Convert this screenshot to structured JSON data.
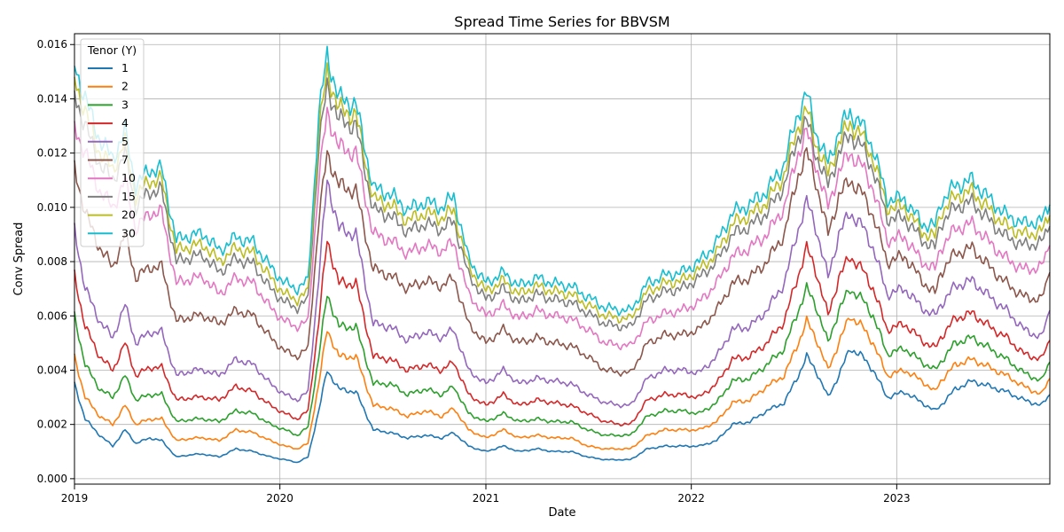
{
  "chart_data": {
    "type": "line",
    "title": "Spread Time Series for BBVSM",
    "xlabel": "Date",
    "ylabel": "Conv Spread",
    "x_range": [
      "2019-01-01",
      "2023-09-30"
    ],
    "x_ticks": [
      {
        "date": "2019-01-01",
        "label": "2019"
      },
      {
        "date": "2020-01-01",
        "label": "2020"
      },
      {
        "date": "2021-01-01",
        "label": "2021"
      },
      {
        "date": "2022-01-01",
        "label": "2022"
      },
      {
        "date": "2023-01-01",
        "label": "2023"
      }
    ],
    "ylim": [
      -0.0002,
      0.0164
    ],
    "y_ticks": [
      0.0,
      0.002,
      0.004,
      0.006,
      0.008,
      0.01,
      0.012,
      0.014,
      0.016
    ],
    "y_tick_labels": [
      "0.000",
      "0.002",
      "0.004",
      "0.006",
      "0.008",
      "0.010",
      "0.012",
      "0.014",
      "0.016"
    ],
    "grid": true,
    "legend": {
      "title": "Tenor (Y)",
      "placement": "top-left"
    },
    "x": [
      "2019-01-01",
      "2019-01-20",
      "2019-02-15",
      "2019-03-10",
      "2019-04-01",
      "2019-04-20",
      "2019-05-15",
      "2019-06-05",
      "2019-07-01",
      "2019-08-01",
      "2019-08-20",
      "2019-09-15",
      "2019-10-15",
      "2019-11-15",
      "2019-12-15",
      "2020-01-10",
      "2020-02-01",
      "2020-02-20",
      "2020-03-10",
      "2020-03-25",
      "2020-04-15",
      "2020-05-15",
      "2020-06-15",
      "2020-07-15",
      "2020-08-15",
      "2020-09-15",
      "2020-10-15",
      "2020-11-05",
      "2020-12-01",
      "2021-01-01",
      "2021-02-01",
      "2021-03-01",
      "2021-04-01",
      "2021-05-01",
      "2021-06-01",
      "2021-07-01",
      "2021-08-01",
      "2021-09-01",
      "2021-09-15",
      "2021-10-15",
      "2021-11-15",
      "2021-12-15",
      "2022-01-15",
      "2022-02-15",
      "2022-03-15",
      "2022-04-15",
      "2022-05-15",
      "2022-06-15",
      "2022-07-10",
      "2022-07-25",
      "2022-08-10",
      "2022-09-01",
      "2022-09-20",
      "2022-10-10",
      "2022-11-01",
      "2022-11-20",
      "2022-12-15",
      "2023-01-15",
      "2023-02-15",
      "2023-03-10",
      "2023-03-20",
      "2023-04-15",
      "2023-05-15",
      "2023-06-15",
      "2023-07-15",
      "2023-08-15",
      "2023-09-15",
      "2023-09-30"
    ],
    "series": [
      {
        "name": "1",
        "color": "#1f77b4",
        "values": [
          0.0035,
          0.0022,
          0.0016,
          0.0012,
          0.0018,
          0.0013,
          0.0015,
          0.0014,
          0.0008,
          0.0009,
          0.0009,
          0.0008,
          0.0011,
          0.001,
          0.0008,
          0.0007,
          0.0006,
          0.0008,
          0.0025,
          0.004,
          0.0033,
          0.0032,
          0.0018,
          0.0017,
          0.0015,
          0.0016,
          0.0015,
          0.0017,
          0.0012,
          0.001,
          0.0012,
          0.001,
          0.0011,
          0.001,
          0.001,
          0.0008,
          0.0007,
          0.0007,
          0.0007,
          0.0011,
          0.0012,
          0.0012,
          0.0012,
          0.0014,
          0.002,
          0.0021,
          0.0025,
          0.0028,
          0.0038,
          0.0045,
          0.004,
          0.003,
          0.0038,
          0.0048,
          0.0045,
          0.004,
          0.003,
          0.0032,
          0.0028,
          0.0025,
          0.0027,
          0.0033,
          0.0036,
          0.0034,
          0.0032,
          0.0029,
          0.0027,
          0.0031
        ]
      },
      {
        "name": "2",
        "color": "#ff7f0e",
        "values": [
          0.0045,
          0.003,
          0.0023,
          0.002,
          0.0027,
          0.002,
          0.0022,
          0.0022,
          0.0014,
          0.0015,
          0.0015,
          0.0014,
          0.0018,
          0.0017,
          0.0014,
          0.0012,
          0.0011,
          0.0013,
          0.0035,
          0.0055,
          0.0045,
          0.0045,
          0.0027,
          0.0026,
          0.0023,
          0.0025,
          0.0023,
          0.0026,
          0.0018,
          0.0015,
          0.0018,
          0.0015,
          0.0016,
          0.0015,
          0.0015,
          0.0012,
          0.0011,
          0.0011,
          0.0011,
          0.0016,
          0.0018,
          0.0018,
          0.0018,
          0.0021,
          0.0028,
          0.0029,
          0.0034,
          0.0038,
          0.005,
          0.0058,
          0.0052,
          0.004,
          0.005,
          0.006,
          0.0056,
          0.005,
          0.0038,
          0.004,
          0.0036,
          0.0032,
          0.0036,
          0.0042,
          0.0044,
          0.0041,
          0.0038,
          0.0034,
          0.0031,
          0.0037
        ]
      },
      {
        "name": "3",
        "color": "#2ca02c",
        "values": [
          0.006,
          0.0042,
          0.0033,
          0.003,
          0.0038,
          0.0029,
          0.0031,
          0.0031,
          0.0021,
          0.0022,
          0.0022,
          0.0021,
          0.0025,
          0.0024,
          0.002,
          0.0018,
          0.0016,
          0.0019,
          0.0045,
          0.0068,
          0.0056,
          0.0056,
          0.0035,
          0.0035,
          0.0031,
          0.0033,
          0.0031,
          0.0034,
          0.0024,
          0.0021,
          0.0024,
          0.0021,
          0.0022,
          0.0021,
          0.0021,
          0.0018,
          0.0016,
          0.0016,
          0.0016,
          0.0023,
          0.0025,
          0.0025,
          0.0024,
          0.0028,
          0.0036,
          0.0037,
          0.0042,
          0.0048,
          0.0062,
          0.007,
          0.0064,
          0.005,
          0.0062,
          0.007,
          0.0066,
          0.006,
          0.0046,
          0.0048,
          0.0043,
          0.004,
          0.0043,
          0.005,
          0.0052,
          0.0048,
          0.0044,
          0.0039,
          0.0036,
          0.0043
        ]
      },
      {
        "name": "4",
        "color": "#d62728",
        "values": [
          0.0075,
          0.0056,
          0.0045,
          0.004,
          0.005,
          0.0038,
          0.0041,
          0.0041,
          0.0029,
          0.003,
          0.003,
          0.0029,
          0.0034,
          0.0032,
          0.0027,
          0.0024,
          0.0022,
          0.0025,
          0.0058,
          0.0088,
          0.0072,
          0.0072,
          0.0045,
          0.0044,
          0.004,
          0.0042,
          0.004,
          0.0043,
          0.0031,
          0.0027,
          0.0031,
          0.0027,
          0.0029,
          0.0028,
          0.0027,
          0.0024,
          0.0021,
          0.002,
          0.002,
          0.0029,
          0.0031,
          0.0031,
          0.003,
          0.0035,
          0.0044,
          0.0045,
          0.005,
          0.0058,
          0.0075,
          0.0085,
          0.0077,
          0.006,
          0.0074,
          0.0082,
          0.0077,
          0.007,
          0.0055,
          0.0057,
          0.0051,
          0.0048,
          0.0052,
          0.0059,
          0.0061,
          0.0056,
          0.0052,
          0.0046,
          0.0044,
          0.0051
        ]
      },
      {
        "name": "5",
        "color": "#9467bd",
        "values": [
          0.0092,
          0.007,
          0.0058,
          0.0052,
          0.0064,
          0.005,
          0.0054,
          0.0054,
          0.0038,
          0.004,
          0.004,
          0.0038,
          0.0044,
          0.0042,
          0.0035,
          0.0031,
          0.0029,
          0.0032,
          0.0074,
          0.011,
          0.0092,
          0.009,
          0.0057,
          0.0056,
          0.0051,
          0.0054,
          0.0052,
          0.0055,
          0.004,
          0.0035,
          0.004,
          0.0035,
          0.0037,
          0.0036,
          0.0035,
          0.0031,
          0.0028,
          0.0027,
          0.0027,
          0.0037,
          0.004,
          0.004,
          0.0039,
          0.0045,
          0.0055,
          0.0056,
          0.0062,
          0.0072,
          0.0092,
          0.0102,
          0.0093,
          0.0074,
          0.009,
          0.0098,
          0.0093,
          0.0085,
          0.0068,
          0.007,
          0.0063,
          0.006,
          0.0064,
          0.0071,
          0.0073,
          0.0067,
          0.0062,
          0.0055,
          0.0052,
          0.0062
        ]
      },
      {
        "name": "7",
        "color": "#8c564b",
        "values": [
          0.0115,
          0.0098,
          0.0085,
          0.0078,
          0.009,
          0.0074,
          0.0078,
          0.0078,
          0.0058,
          0.006,
          0.006,
          0.0057,
          0.0062,
          0.006,
          0.0052,
          0.0047,
          0.0045,
          0.0048,
          0.0095,
          0.012,
          0.0108,
          0.0106,
          0.0077,
          0.0075,
          0.007,
          0.0073,
          0.0071,
          0.0074,
          0.0057,
          0.005,
          0.0055,
          0.005,
          0.0052,
          0.005,
          0.0049,
          0.0045,
          0.004,
          0.0039,
          0.0039,
          0.005,
          0.0053,
          0.0053,
          0.0055,
          0.0062,
          0.0072,
          0.0074,
          0.008,
          0.009,
          0.0112,
          0.012,
          0.011,
          0.009,
          0.0104,
          0.011,
          0.0105,
          0.0097,
          0.008,
          0.0082,
          0.0073,
          0.0068,
          0.0076,
          0.0083,
          0.0085,
          0.0078,
          0.0072,
          0.0067,
          0.0066,
          0.0076
        ]
      },
      {
        "name": "10",
        "color": "#e377c2",
        "values": [
          0.013,
          0.012,
          0.0106,
          0.01,
          0.011,
          0.0092,
          0.0098,
          0.0098,
          0.0072,
          0.0074,
          0.0074,
          0.0068,
          0.0074,
          0.0072,
          0.0063,
          0.0058,
          0.0056,
          0.0058,
          0.011,
          0.0135,
          0.0122,
          0.012,
          0.009,
          0.0088,
          0.0083,
          0.0086,
          0.0084,
          0.0087,
          0.0068,
          0.006,
          0.0064,
          0.0059,
          0.0062,
          0.006,
          0.0059,
          0.0055,
          0.005,
          0.0049,
          0.0049,
          0.0058,
          0.0061,
          0.0062,
          0.0065,
          0.0072,
          0.0082,
          0.0085,
          0.009,
          0.01,
          0.012,
          0.0128,
          0.0116,
          0.01,
          0.0113,
          0.012,
          0.0115,
          0.0107,
          0.0088,
          0.0089,
          0.008,
          0.0077,
          0.0085,
          0.0092,
          0.0094,
          0.0087,
          0.0081,
          0.0077,
          0.0078,
          0.0086
        ]
      },
      {
        "name": "15",
        "color": "#7f7f7f",
        "values": [
          0.0142,
          0.013,
          0.0116,
          0.011,
          0.012,
          0.01,
          0.0106,
          0.0106,
          0.008,
          0.0082,
          0.0082,
          0.0076,
          0.0081,
          0.0079,
          0.007,
          0.0065,
          0.0063,
          0.0066,
          0.0122,
          0.0145,
          0.0132,
          0.013,
          0.0099,
          0.0097,
          0.0091,
          0.0094,
          0.0092,
          0.0095,
          0.0075,
          0.0066,
          0.007,
          0.0065,
          0.0068,
          0.0066,
          0.0065,
          0.0061,
          0.0057,
          0.0056,
          0.0056,
          0.0066,
          0.0069,
          0.007,
          0.0074,
          0.008,
          0.009,
          0.0093,
          0.0098,
          0.0108,
          0.0126,
          0.0132,
          0.012,
          0.0108,
          0.012,
          0.0127,
          0.0122,
          0.0114,
          0.0096,
          0.0096,
          0.0088,
          0.0085,
          0.0094,
          0.01,
          0.0102,
          0.0095,
          0.0089,
          0.0086,
          0.0087,
          0.0093
        ]
      },
      {
        "name": "20",
        "color": "#bcbd22",
        "values": [
          0.0148,
          0.0135,
          0.012,
          0.0114,
          0.0124,
          0.0104,
          0.011,
          0.011,
          0.0084,
          0.0086,
          0.0086,
          0.008,
          0.0085,
          0.0083,
          0.0074,
          0.0068,
          0.0066,
          0.0069,
          0.0128,
          0.015,
          0.0136,
          0.0134,
          0.0103,
          0.0101,
          0.0095,
          0.0098,
          0.0096,
          0.0099,
          0.0078,
          0.0069,
          0.0073,
          0.0068,
          0.0071,
          0.0069,
          0.0068,
          0.0064,
          0.006,
          0.0059,
          0.0059,
          0.0069,
          0.0072,
          0.0073,
          0.0077,
          0.0083,
          0.0094,
          0.0097,
          0.0102,
          0.0112,
          0.013,
          0.0136,
          0.0124,
          0.0112,
          0.0124,
          0.0131,
          0.0126,
          0.0118,
          0.01,
          0.01,
          0.0091,
          0.0089,
          0.0098,
          0.0104,
          0.0106,
          0.0099,
          0.0093,
          0.009,
          0.0091,
          0.0097
        ]
      },
      {
        "name": "30",
        "color": "#17becf",
        "values": [
          0.0153,
          0.014,
          0.0125,
          0.0118,
          0.0128,
          0.0108,
          0.0114,
          0.0114,
          0.0088,
          0.009,
          0.009,
          0.0084,
          0.0089,
          0.0087,
          0.0078,
          0.0072,
          0.007,
          0.0073,
          0.0134,
          0.0156,
          0.014,
          0.0138,
          0.0107,
          0.0105,
          0.0099,
          0.0102,
          0.01,
          0.0104,
          0.0081,
          0.0072,
          0.0076,
          0.0071,
          0.0074,
          0.0072,
          0.0071,
          0.0067,
          0.0063,
          0.0062,
          0.0062,
          0.0072,
          0.0075,
          0.0076,
          0.008,
          0.0087,
          0.0098,
          0.0101,
          0.0106,
          0.0116,
          0.0135,
          0.0142,
          0.0128,
          0.0116,
          0.0128,
          0.0135,
          0.013,
          0.0122,
          0.0103,
          0.0103,
          0.0094,
          0.0093,
          0.0102,
          0.0108,
          0.011,
          0.0103,
          0.0097,
          0.0094,
          0.0095,
          0.0101
        ]
      }
    ]
  }
}
